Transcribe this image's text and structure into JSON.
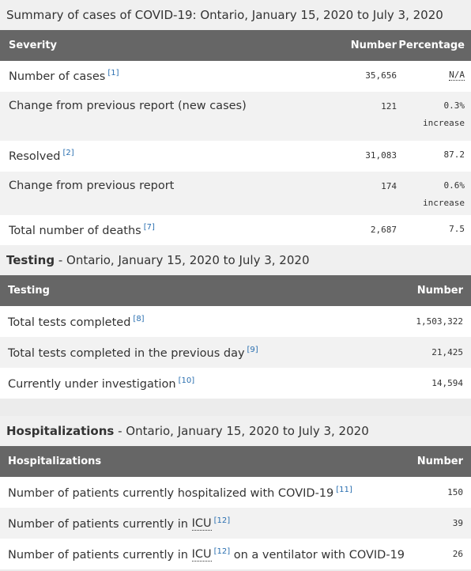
{
  "summary": {
    "caption": "Summary of cases of COVID-19: Ontario, January 15, 2020 to July 3, 2020",
    "headers": {
      "severity": "Severity",
      "number": "Number",
      "percentage": "Percentage"
    },
    "rows": [
      {
        "label": "Number of cases",
        "ref": "[1]",
        "number": "35,656",
        "percentage": "N/A",
        "percentage_note": ""
      },
      {
        "label": "Change from previous report (new cases)",
        "ref": "",
        "number": "121",
        "percentage": "0.3%",
        "percentage_note": "increase"
      },
      {
        "label": "Resolved",
        "ref": "[2]",
        "number": "31,083",
        "percentage": "87.2",
        "percentage_note": ""
      },
      {
        "label": "Change from previous report",
        "ref": "",
        "number": "174",
        "percentage": "0.6%",
        "percentage_note": "increase"
      },
      {
        "label": "Total number of deaths",
        "ref": "[7]",
        "number": "2,687",
        "percentage": "7.5",
        "percentage_note": ""
      }
    ]
  },
  "testing": {
    "caption_strong": "Testing",
    "caption_rest": " - Ontario, January 15, 2020 to July 3, 2020",
    "headers": {
      "testing": "Testing",
      "number": "Number"
    },
    "rows": [
      {
        "label": "Total tests completed",
        "ref": "[8]",
        "number": "1,503,322"
      },
      {
        "label": "Total tests completed in the previous day",
        "ref": "[9]",
        "number": "21,425"
      },
      {
        "label": "Currently under investigation",
        "ref": "[10]",
        "number": "14,594"
      }
    ]
  },
  "hospitalizations": {
    "caption_strong": "Hospitalizations",
    "caption_rest": " - Ontario, January 15, 2020 to July 3, 2020",
    "headers": {
      "hospitalizations": "Hospitalizations",
      "number": "Number"
    },
    "rows": [
      {
        "label": "Number of patients currently hospitalized with COVID-19",
        "abbr": "",
        "ref": "[11]",
        "label_after": "",
        "number": "150"
      },
      {
        "label": "Number of patients currently in ",
        "abbr": "ICU",
        "ref": "[12]",
        "label_after": "",
        "number": "39"
      },
      {
        "label": "Number of patients currently in ",
        "abbr": "ICU",
        "ref": "[12]",
        "label_after": " on a ventilator with COVID-19",
        "number": "26"
      }
    ]
  }
}
